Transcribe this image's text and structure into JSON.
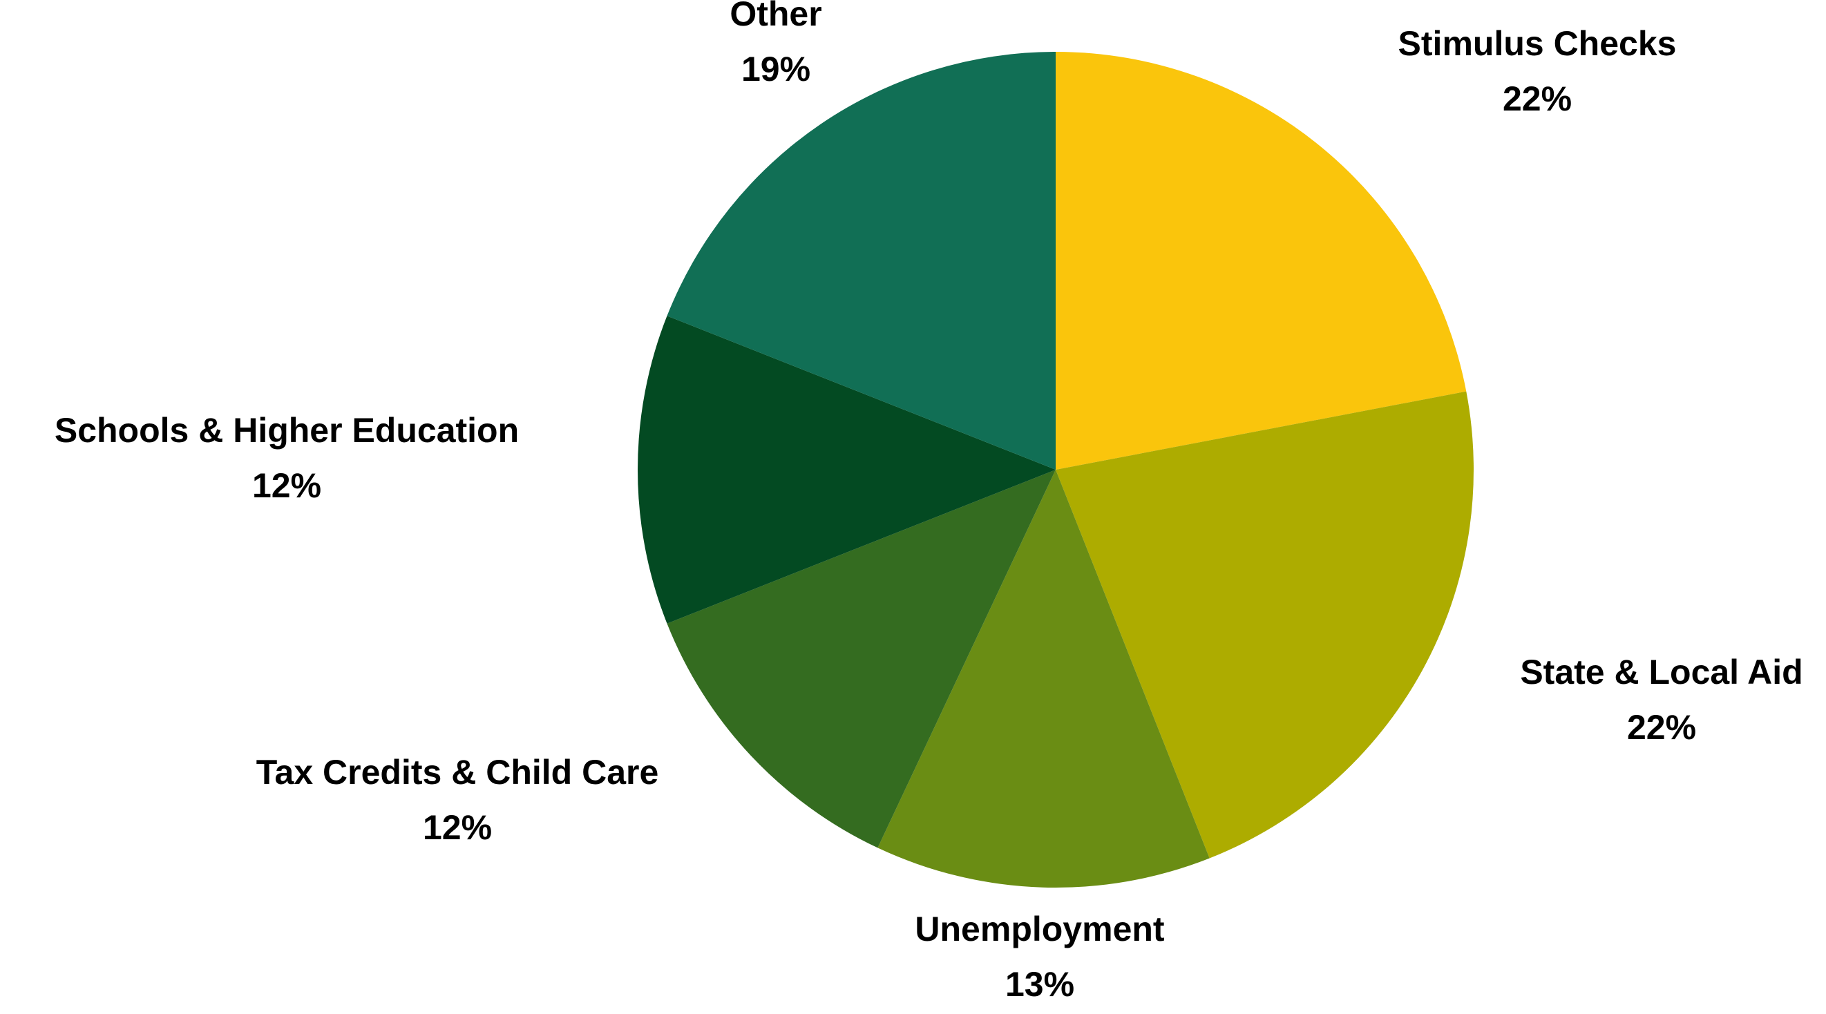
{
  "chart_data": {
    "type": "pie",
    "title": "",
    "start_angle_deg": 0,
    "direction": "clockwise",
    "slices": [
      {
        "label": "Stimulus Checks",
        "value": 22,
        "value_label": "22%",
        "color": "#FAC50C"
      },
      {
        "label": "State & Local Aid",
        "value": 22,
        "value_label": "22%",
        "color": "#ADAC00"
      },
      {
        "label": "Unemployment",
        "value": 13,
        "value_label": "13%",
        "color": "#6A8D14"
      },
      {
        "label": "Tax Credits & Child Care",
        "value": 12,
        "value_label": "12%",
        "color": "#346C20"
      },
      {
        "label": "Schools & Higher Education",
        "value": 12,
        "value_label": "12%",
        "color": "#034A22"
      },
      {
        "label": "Other",
        "value": 19,
        "value_label": "19%",
        "color": "#116F55"
      }
    ]
  }
}
